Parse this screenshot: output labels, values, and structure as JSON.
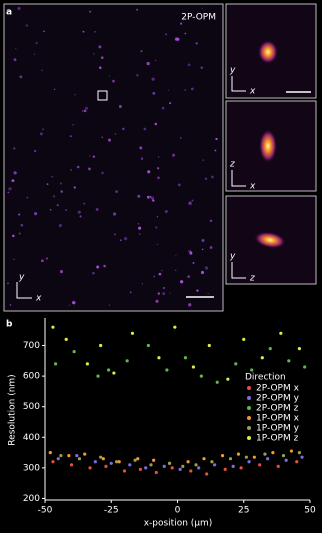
{
  "panel_a": {
    "label": "a",
    "title": "2P-OPM",
    "axes": {
      "vertical": "y",
      "horizontal": "x"
    },
    "insets": [
      {
        "vertical": "y",
        "horizontal": "x"
      },
      {
        "vertical": "z",
        "horizontal": "x"
      },
      {
        "vertical": "y",
        "horizontal": "z"
      }
    ]
  },
  "panel_b": {
    "label": "b"
  },
  "chart_data": {
    "type": "scatter",
    "xlabel": "x-position (μm)",
    "ylabel": "Resolution (nm)",
    "xlim": [
      -50,
      50
    ],
    "ylim": [
      195,
      790
    ],
    "xticks": [
      -50,
      -25,
      0,
      25,
      50
    ],
    "yticks": [
      200,
      300,
      400,
      500,
      600,
      700
    ],
    "legend_title": "Direction",
    "series": [
      {
        "name": "2P-OPM x",
        "color": "#e8503a",
        "x": [
          -47,
          -40,
          -33,
          -27,
          -20,
          -14,
          -8,
          -2,
          5,
          11,
          18,
          24,
          31,
          38,
          45
        ],
        "values": [
          320,
          310,
          300,
          305,
          290,
          295,
          285,
          300,
          290,
          280,
          295,
          300,
          310,
          305,
          320
        ]
      },
      {
        "name": "2P-OPM y",
        "color": "#7b6fe0",
        "x": [
          -45,
          -38,
          -31,
          -25,
          -18,
          -12,
          -5,
          1,
          8,
          14,
          21,
          27,
          34,
          41,
          47
        ],
        "values": [
          330,
          340,
          320,
          315,
          310,
          300,
          305,
          295,
          300,
          310,
          305,
          320,
          330,
          325,
          335
        ]
      },
      {
        "name": "2P-OPM z",
        "color": "#5fb84a",
        "x": [
          -46,
          -39,
          -30,
          -26,
          -19,
          -11,
          -4,
          3,
          9,
          15,
          22,
          28,
          35,
          42,
          48
        ],
        "values": [
          640,
          680,
          600,
          620,
          650,
          700,
          620,
          660,
          600,
          580,
          640,
          620,
          690,
          650,
          630
        ]
      },
      {
        "name": "1P-OPM x",
        "color": "#f59a32",
        "x": [
          -48,
          -41,
          -35,
          -28,
          -22,
          -15,
          -9,
          -3,
          4,
          10,
          17,
          23,
          29,
          36,
          43
        ],
        "values": [
          350,
          340,
          345,
          330,
          320,
          330,
          325,
          315,
          320,
          330,
          340,
          345,
          335,
          350,
          355
        ]
      },
      {
        "name": "1P-OPM y",
        "color": "#9aa04a",
        "x": [
          -44,
          -37,
          -29,
          -23,
          -16,
          -10,
          -3,
          2,
          7,
          13,
          20,
          26,
          33,
          40,
          46
        ],
        "values": [
          340,
          330,
          335,
          320,
          325,
          310,
          315,
          305,
          310,
          320,
          330,
          335,
          345,
          340,
          350
        ]
      },
      {
        "name": "1P-OPM z",
        "color": "#e6e84a",
        "x": [
          -47,
          -42,
          -34,
          -29,
          -24,
          -17,
          -7,
          -1,
          6,
          12,
          19,
          25,
          32,
          39,
          46
        ],
        "values": [
          760,
          720,
          640,
          700,
          610,
          740,
          660,
          760,
          630,
          700,
          590,
          720,
          660,
          740,
          690
        ]
      }
    ]
  }
}
